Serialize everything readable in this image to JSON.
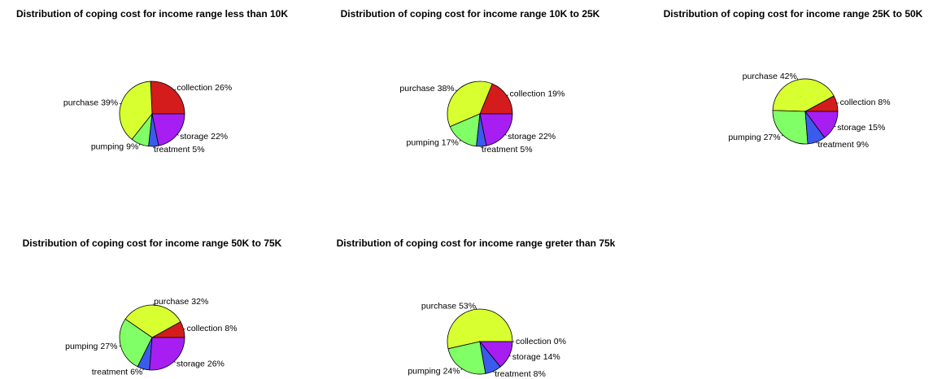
{
  "chart_data": [
    {
      "type": "pie",
      "title": "Distribution of coping cost for income range less than 10K",
      "categories": [
        "collection",
        "purchase",
        "pumping",
        "treatment",
        "storage"
      ],
      "values": [
        26,
        39,
        9,
        5,
        22
      ],
      "value_labels": [
        "26%",
        "39%",
        "9%",
        "5%",
        "22%"
      ],
      "colors": [
        "#d41c1c",
        "#d8ff30",
        "#80ff66",
        "#3b5bef",
        "#a61ef2"
      ]
    },
    {
      "type": "pie",
      "title": "Distribution of coping cost for income range 10K to 25K",
      "categories": [
        "collection",
        "purchase",
        "pumping",
        "treatment",
        "storage"
      ],
      "values": [
        19,
        38,
        17,
        5,
        22
      ],
      "value_labels": [
        "19%",
        "38%",
        "17%",
        "5%",
        "22%"
      ],
      "colors": [
        "#d41c1c",
        "#d8ff30",
        "#80ff66",
        "#3b5bef",
        "#a61ef2"
      ]
    },
    {
      "type": "pie",
      "title": "Distribution of coping cost for income range 25K to 50K",
      "categories": [
        "collection",
        "purchase",
        "pumping",
        "treatment",
        "storage"
      ],
      "values": [
        8,
        42,
        27,
        9,
        15
      ],
      "value_labels": [
        "8%",
        "42%",
        "27%",
        "9%",
        "15%"
      ],
      "colors": [
        "#d41c1c",
        "#d8ff30",
        "#80ff66",
        "#3b5bef",
        "#a61ef2"
      ]
    },
    {
      "type": "pie",
      "title": "Distribution of coping cost for income range 50K to 75K",
      "categories": [
        "collection",
        "purchase",
        "pumping",
        "treatment",
        "storage"
      ],
      "values": [
        8,
        32,
        27,
        6,
        26
      ],
      "value_labels": [
        "8%",
        "32%",
        "27%",
        "6%",
        "26%"
      ],
      "colors": [
        "#d41c1c",
        "#d8ff30",
        "#80ff66",
        "#3b5bef",
        "#a61ef2"
      ]
    },
    {
      "type": "pie",
      "title": "Distribution of coping cost for income range greter than 75k",
      "categories": [
        "collection",
        "purchase",
        "pumping",
        "treatment",
        "storage"
      ],
      "values": [
        0,
        53,
        24,
        8,
        14
      ],
      "value_labels": [
        "0%",
        "53%",
        "24%",
        "8%",
        "14%"
      ],
      "colors": [
        "#d41c1c",
        "#d8ff30",
        "#80ff66",
        "#3b5bef",
        "#a61ef2"
      ]
    }
  ]
}
